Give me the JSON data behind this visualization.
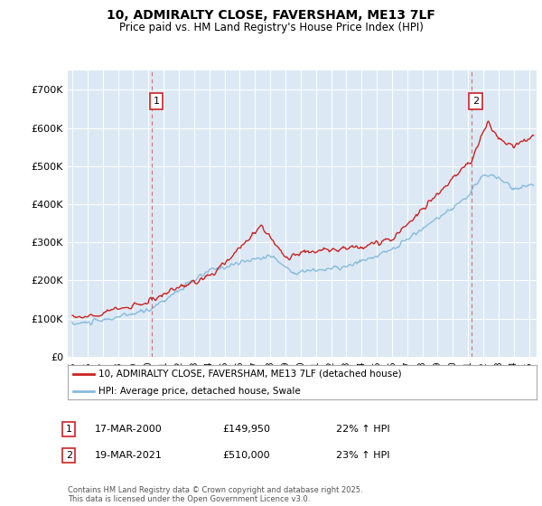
{
  "title": "10, ADMIRALTY CLOSE, FAVERSHAM, ME13 7LF",
  "subtitle": "Price paid vs. HM Land Registry's House Price Index (HPI)",
  "plot_bg_color": "#dce9f5",
  "red_line_color": "#cc2222",
  "blue_line_color": "#88bbdd",
  "marker1_x": 2000.21,
  "marker2_x": 2021.21,
  "legend_label1": "10, ADMIRALTY CLOSE, FAVERSHAM, ME13 7LF (detached house)",
  "legend_label2": "HPI: Average price, detached house, Swale",
  "table_row1": [
    "1",
    "17-MAR-2000",
    "£149,950",
    "22% ↑ HPI"
  ],
  "table_row2": [
    "2",
    "19-MAR-2021",
    "£510,000",
    "23% ↑ HPI"
  ],
  "footer": "Contains HM Land Registry data © Crown copyright and database right 2025.\nThis data is licensed under the Open Government Licence v3.0.",
  "ylim": [
    0,
    750000
  ],
  "yticks": [
    0,
    100000,
    200000,
    300000,
    400000,
    500000,
    600000,
    700000
  ],
  "xlim_start": 1994.7,
  "xlim_end": 2025.5
}
